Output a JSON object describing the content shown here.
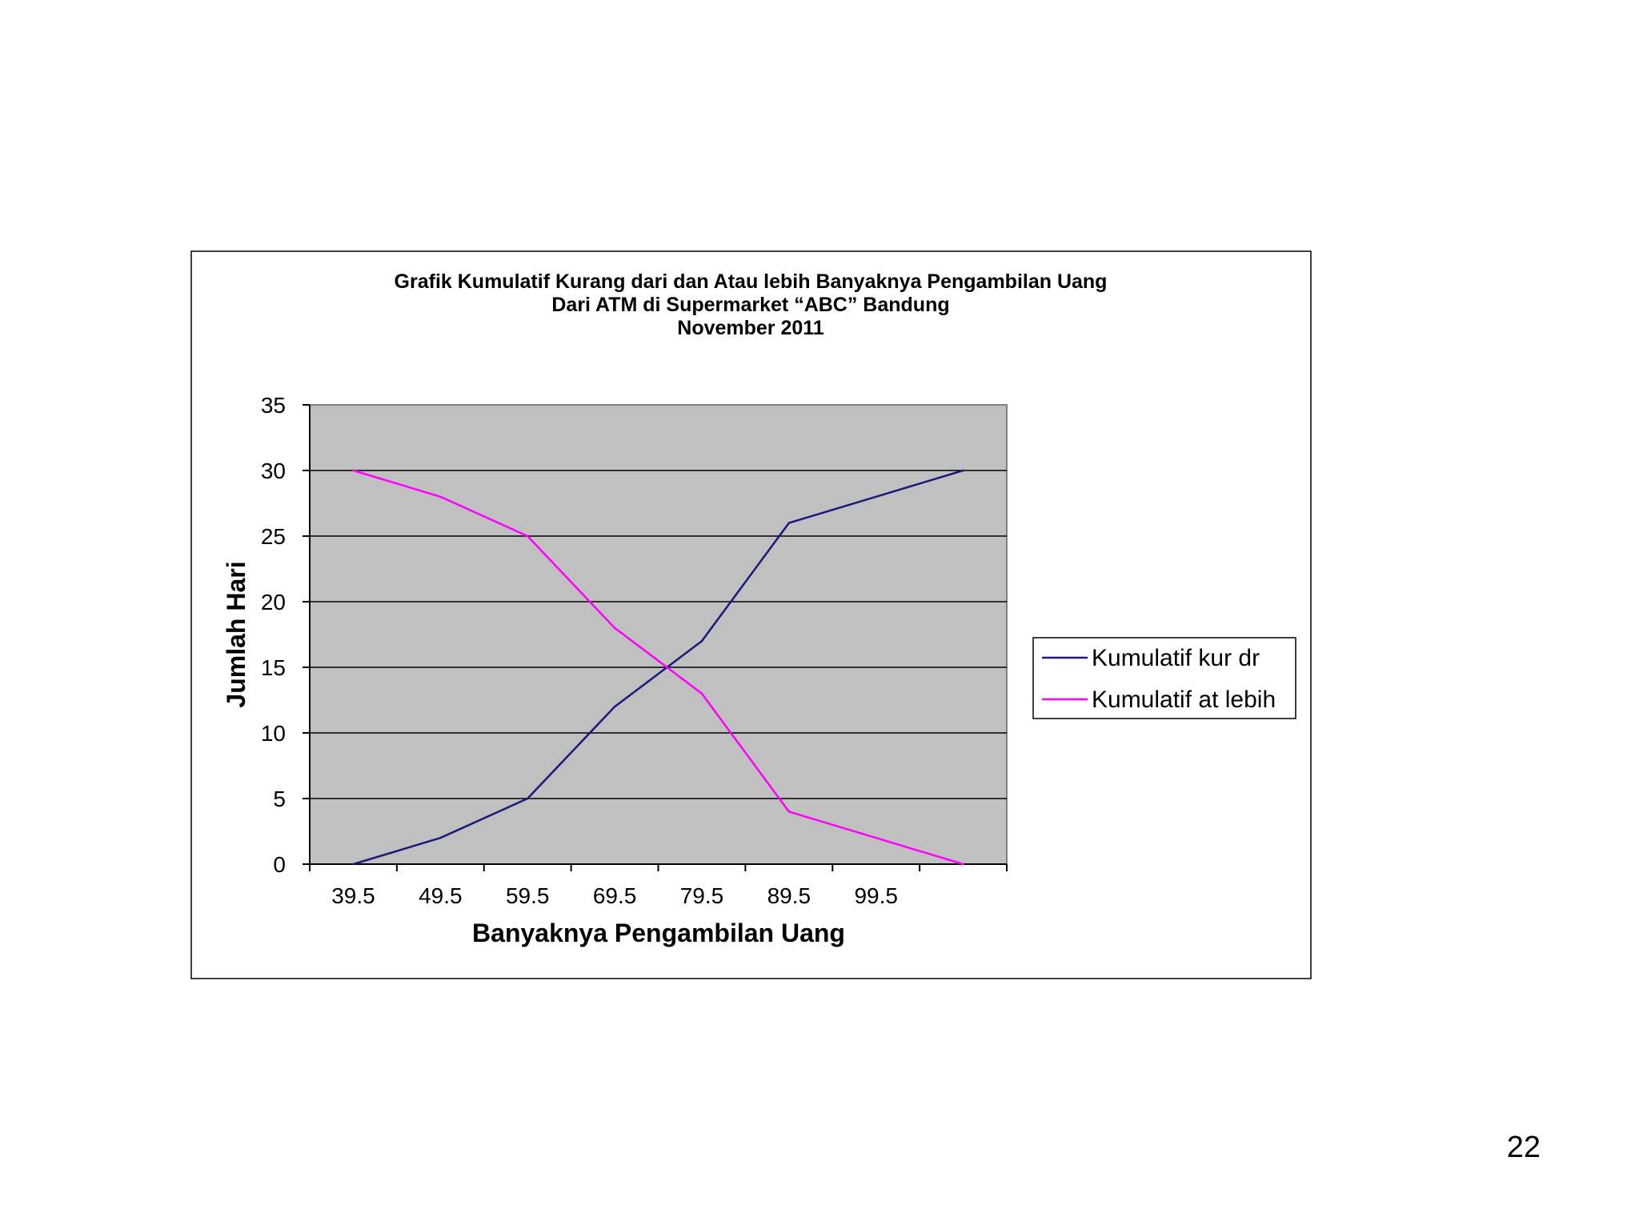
{
  "slide": {
    "page_number": "22"
  },
  "chart_data": {
    "type": "line",
    "title": [
      "Grafik Kumulatif Kurang dari dan Atau lebih Banyaknya  Pengambilan  Uang",
      "Dari ATM di Supermarket  “ABC”  Bandung",
      "November 2011"
    ],
    "xlabel": "Banyaknya Pengambilan Uang",
    "ylabel": "Jumlah Hari",
    "categories": [
      "39.5",
      "49.5",
      "59.5",
      "69.5",
      "79.5",
      "89.5",
      "99.5",
      ""
    ],
    "x_tick_labels": [
      "39.5",
      "49.5",
      "59.5",
      "69.5",
      "79.5",
      "89.5",
      "99.5"
    ],
    "ylim": [
      0,
      35
    ],
    "yticks": [
      0,
      5,
      10,
      15,
      20,
      25,
      30,
      35
    ],
    "grid": true,
    "plot_background": "#c0c0c0",
    "legend_position": "right",
    "series": [
      {
        "name": "Kumulatif kur dr",
        "color": "#1a1a7a",
        "values": [
          0,
          2,
          5,
          12,
          17,
          26,
          28,
          30
        ]
      },
      {
        "name": "Kumulatif  at lebih",
        "color": "#ff00ff",
        "values": [
          30,
          28,
          25,
          18,
          13,
          4,
          2,
          0
        ]
      }
    ]
  }
}
